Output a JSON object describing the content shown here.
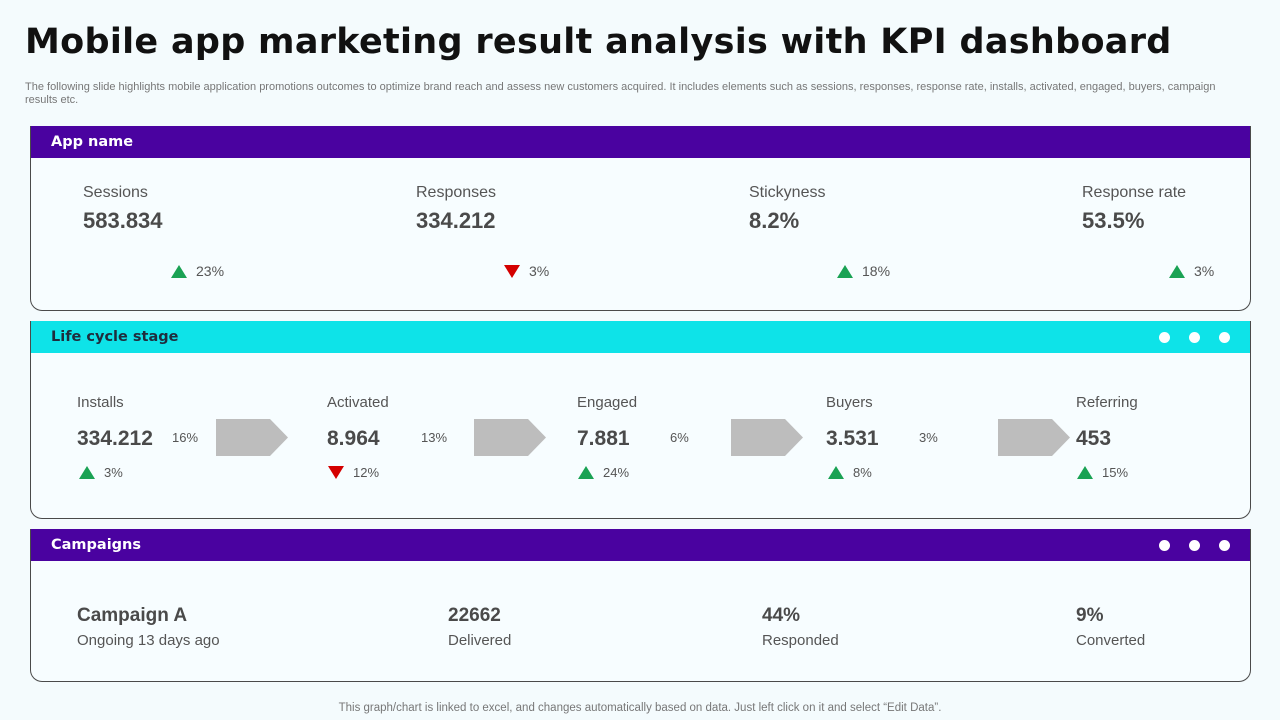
{
  "title": "Mobile app marketing result analysis with KPI dashboard",
  "subtitle": "The following slide highlights mobile application promotions outcomes to optimize brand reach and assess new customers acquired. It includes elements such as sessions, responses, response rate, installs, activated, engaged, buyers, campaign results etc.",
  "colors": {
    "purple": "#4a02a0",
    "cyan": "#0ee3e8",
    "up": "#1aa254",
    "down": "#d40000",
    "arrow": "#bdbdbd"
  },
  "app_panel": {
    "header": "App name",
    "kpis": [
      {
        "label": "Sessions",
        "value": "583.834",
        "change": "23%",
        "direction": "up"
      },
      {
        "label": "Responses",
        "value": "334.212",
        "change": "3%",
        "direction": "down"
      },
      {
        "label": "Stickyness",
        "value": "8.2%",
        "change": "18%",
        "direction": "up"
      },
      {
        "label": "Response rate",
        "value": "53.5%",
        "change": "3%",
        "direction": "up"
      }
    ]
  },
  "lifecycle_panel": {
    "header": "Life cycle stage",
    "stages": [
      {
        "label": "Installs",
        "value": "334.212",
        "change": "3%",
        "direction": "up",
        "conversion": "16%"
      },
      {
        "label": "Activated",
        "value": "8.964",
        "change": "12%",
        "direction": "down",
        "conversion": "13%"
      },
      {
        "label": "Engaged",
        "value": "7.881",
        "change": "24%",
        "direction": "up",
        "conversion": "6%"
      },
      {
        "label": "Buyers",
        "value": "3.531",
        "change": "8%",
        "direction": "up",
        "conversion": "3%"
      },
      {
        "label": "Referring",
        "value": "453",
        "change": "15%",
        "direction": "up"
      }
    ]
  },
  "campaigns_panel": {
    "header": "Campaigns",
    "campaign_name": "Campaign A",
    "campaign_status": "Ongoing 13 days ago",
    "metrics": [
      {
        "value": "22662",
        "label": "Delivered"
      },
      {
        "value": "44%",
        "label": "Responded"
      },
      {
        "value": "9%",
        "label": "Converted"
      }
    ]
  },
  "footer": "This graph/chart is linked to excel,  and changes automatically based on data. Just left click on it and select “Edit Data”."
}
